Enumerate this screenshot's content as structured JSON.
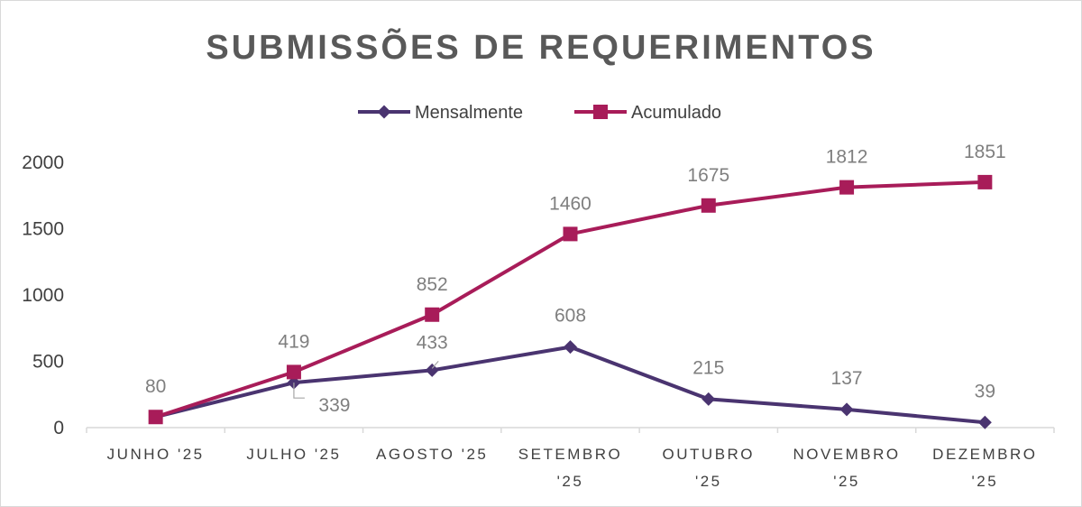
{
  "chart_data": {
    "type": "line",
    "title": "SUBMISSÕES DE REQUERIMENTOS",
    "categories": [
      [
        "JUNHO '25"
      ],
      [
        "JULHO '25"
      ],
      [
        "AGOSTO '25"
      ],
      [
        "SETEMBRO",
        "'25"
      ],
      [
        "OUTUBRO",
        "'25"
      ],
      [
        "NOVEMBRO",
        "'25"
      ],
      [
        "DEZEMBRO",
        "'25"
      ]
    ],
    "series": [
      {
        "name": "Mensalmente",
        "color": "#4a3470",
        "marker": "diamond",
        "values": [
          80,
          339,
          433,
          608,
          215,
          137,
          39
        ]
      },
      {
        "name": "Acumulado",
        "color": "#a81c59",
        "marker": "square",
        "values": [
          80,
          419,
          852,
          1460,
          1675,
          1812,
          1851
        ]
      }
    ],
    "ylim": [
      0,
      2000
    ],
    "yticks": [
      0,
      500,
      1000,
      1500,
      2000
    ],
    "legend_position": "top",
    "grid": false
  }
}
